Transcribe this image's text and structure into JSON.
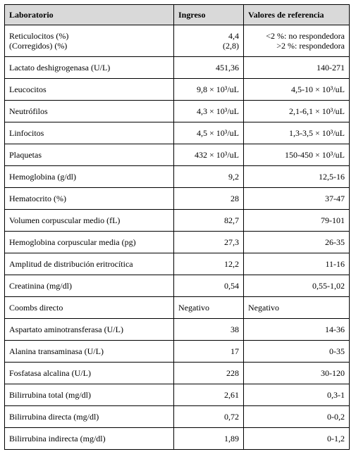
{
  "table": {
    "headers": [
      "Laboratorio",
      "Ingreso",
      "Valores de referencia"
    ],
    "rows": [
      {
        "name": [
          "Reticulocitos (%)",
          "(Corregidos) (%)"
        ],
        "ingreso": [
          "4,4",
          "(2,8)"
        ],
        "ref": [
          "<2 %: no respondedora",
          ">2 %: respondedora"
        ]
      },
      {
        "name": [
          "Lactato deshigrogenasa (U/L)"
        ],
        "ingreso": [
          "451,36"
        ],
        "ref": [
          "140-271"
        ]
      },
      {
        "name": [
          "Leucocitos"
        ],
        "ingreso": [
          "9,8 × 10³/uL"
        ],
        "ref": [
          "4,5-10 × 10³/uL"
        ]
      },
      {
        "name": [
          "Neutrófilos"
        ],
        "ingreso": [
          "4,3 × 10³/uL"
        ],
        "ref": [
          "2,1-6,1 × 10³/uL"
        ]
      },
      {
        "name": [
          "Linfocitos"
        ],
        "ingreso": [
          "4,5 × 10³/uL"
        ],
        "ref": [
          "1,3-3,5 × 10³/uL"
        ]
      },
      {
        "name": [
          "Plaquetas"
        ],
        "ingreso": [
          "432 × 10³/uL"
        ],
        "ref": [
          "150-450 × 10³/uL"
        ]
      },
      {
        "name": [
          "Hemoglobina (g/dl)"
        ],
        "ingreso": [
          "9,2"
        ],
        "ref": [
          "12,5-16"
        ]
      },
      {
        "name": [
          "Hematocrito (%)"
        ],
        "ingreso": [
          "28"
        ],
        "ref": [
          "37-47"
        ]
      },
      {
        "name": [
          "Volumen corpuscular medio (fL)"
        ],
        "ingreso": [
          "82,7"
        ],
        "ref": [
          "79-101"
        ]
      },
      {
        "name": [
          "Hemoglobina corpuscular media (pg)"
        ],
        "ingreso": [
          "27,3"
        ],
        "ref": [
          "26-35"
        ]
      },
      {
        "name": [
          "Amplitud de distribución eritrocítica"
        ],
        "ingreso": [
          "12,2"
        ],
        "ref": [
          "11-16"
        ]
      },
      {
        "name": [
          "Creatinina (mg/dl)"
        ],
        "ingreso": [
          "0,54"
        ],
        "ref": [
          "0,55-1,02"
        ]
      },
      {
        "name": [
          "Coombs directo"
        ],
        "ingreso": [
          "Negativo"
        ],
        "ref": [
          "Negativo"
        ],
        "left": true
      },
      {
        "name": [
          "Aspartato aminotransferasa (U/L)"
        ],
        "ingreso": [
          "38"
        ],
        "ref": [
          "14-36"
        ]
      },
      {
        "name": [
          "Alanina transaminasa (U/L)"
        ],
        "ingreso": [
          "17"
        ],
        "ref": [
          "0-35"
        ]
      },
      {
        "name": [
          "Fosfatasa alcalina (U/L)"
        ],
        "ingreso": [
          "228"
        ],
        "ref": [
          "30-120"
        ]
      },
      {
        "name": [
          "Bilirrubina total (mg/dl)"
        ],
        "ingreso": [
          "2,61"
        ],
        "ref": [
          "0,3-1"
        ]
      },
      {
        "name": [
          "Bilirrubina directa (mg/dl)"
        ],
        "ingreso": [
          "0,72"
        ],
        "ref": [
          "0-0,2"
        ]
      },
      {
        "name": [
          "Bilirrubina indirecta (mg/dl)"
        ],
        "ingreso": [
          "1,89"
        ],
        "ref": [
          "0-1,2"
        ]
      }
    ]
  }
}
